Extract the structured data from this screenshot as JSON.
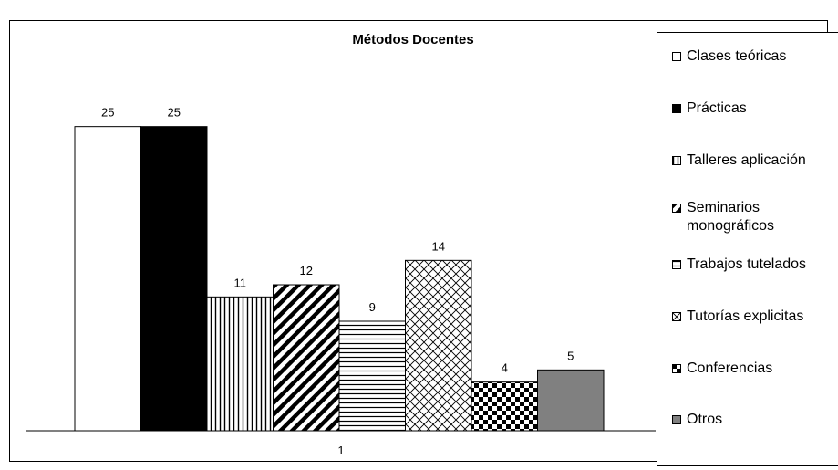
{
  "chart_data": {
    "type": "bar",
    "title": "Métodos Docentes",
    "categories": [
      "1"
    ],
    "xlabel": "",
    "ylabel": "",
    "ylim": [
      0,
      30
    ],
    "grid": false,
    "legend_position": "right",
    "series": [
      {
        "name": "Clases teóricas",
        "values": [
          25
        ],
        "pattern": "white"
      },
      {
        "name": "Prácticas",
        "values": [
          25
        ],
        "pattern": "black"
      },
      {
        "name": "Talleres aplicación",
        "values": [
          11
        ],
        "pattern": "vertical-lines"
      },
      {
        "name": "Seminarios monográficos",
        "values": [
          12
        ],
        "pattern": "diagonal-stripes"
      },
      {
        "name": "Trabajos tutelados",
        "values": [
          9
        ],
        "pattern": "horizontal-lines"
      },
      {
        "name": "Tutorías explicitas",
        "values": [
          14
        ],
        "pattern": "diagonal-crosshatch"
      },
      {
        "name": "Conferencias",
        "values": [
          4
        ],
        "pattern": "checkerboard"
      },
      {
        "name": "Otros",
        "values": [
          5
        ],
        "pattern": "gray",
        "color": "#808080"
      }
    ]
  }
}
